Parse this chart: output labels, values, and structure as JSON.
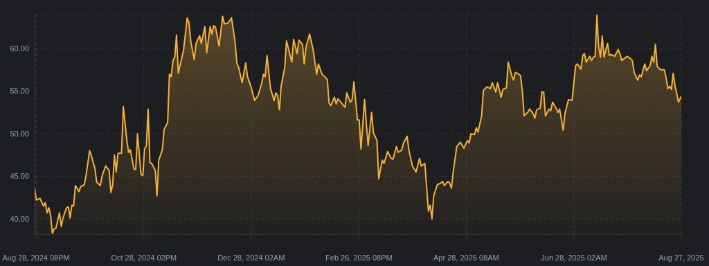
{
  "chart_data": {
    "type": "area",
    "x": [
      "2024-08-28",
      "2024-08-29",
      "2024-08-31",
      "2024-09-02",
      "2024-09-03",
      "2024-09-04",
      "2024-09-05",
      "2024-09-06",
      "2024-09-07",
      "2024-09-08",
      "2024-09-09",
      "2024-09-11",
      "2024-09-12",
      "2024-09-13",
      "2024-09-15",
      "2024-09-16",
      "2024-09-17",
      "2024-09-18",
      "2024-09-19",
      "2024-09-20",
      "2024-09-22",
      "2024-09-23",
      "2024-09-25",
      "2024-09-26",
      "2024-09-28",
      "2024-09-29",
      "2024-10-01",
      "2024-10-02",
      "2024-10-04",
      "2024-10-05",
      "2024-10-07",
      "2024-10-09",
      "2024-10-10",
      "2024-10-11",
      "2024-10-12",
      "2024-10-13",
      "2024-10-14",
      "2024-10-16",
      "2024-10-17",
      "2024-10-19",
      "2024-10-20",
      "2024-10-21",
      "2024-10-23",
      "2024-10-24",
      "2024-10-25",
      "2024-10-27",
      "2024-10-28",
      "2024-10-29",
      "2024-10-30",
      "2024-10-31",
      "2024-11-01",
      "2024-11-02",
      "2024-11-04",
      "2024-11-05",
      "2024-11-06",
      "2024-11-08",
      "2024-11-09",
      "2024-11-11",
      "2024-11-12",
      "2024-11-13",
      "2024-11-14",
      "2024-11-15",
      "2024-11-16",
      "2024-11-17",
      "2024-11-18",
      "2024-11-20",
      "2024-11-22",
      "2024-11-23",
      "2024-11-24",
      "2024-11-26",
      "2024-11-27",
      "2024-11-29",
      "2024-11-30",
      "2024-12-02",
      "2024-12-03",
      "2024-12-05",
      "2024-12-06",
      "2024-12-07",
      "2024-12-08",
      "2024-12-10",
      "2024-12-12",
      "2024-12-13",
      "2024-12-15",
      "2024-12-17",
      "2024-12-19",
      "2024-12-20",
      "2024-12-21",
      "2024-12-23",
      "2024-12-25",
      "2024-12-26",
      "2024-12-28",
      "2024-12-30",
      "2025-01-01",
      "2025-01-03",
      "2025-01-04",
      "2025-01-05",
      "2025-01-06",
      "2025-01-08",
      "2025-01-10",
      "2025-01-11",
      "2025-01-12",
      "2025-01-13",
      "2025-01-14",
      "2025-01-16",
      "2025-01-17",
      "2025-01-18",
      "2025-01-20",
      "2025-01-21",
      "2025-01-23",
      "2025-01-24",
      "2025-01-26",
      "2025-01-27",
      "2025-01-28",
      "2025-01-30",
      "2025-02-01",
      "2025-02-03",
      "2025-02-04",
      "2025-02-06",
      "2025-02-09",
      "2025-02-10",
      "2025-02-11",
      "2025-02-13",
      "2025-02-14",
      "2025-02-15",
      "2025-02-19",
      "2025-02-20",
      "2025-02-22",
      "2025-02-23",
      "2025-02-24",
      "2025-02-26",
      "2025-02-27",
      "2025-02-28",
      "2025-03-02",
      "2025-03-04",
      "2025-03-06",
      "2025-03-07",
      "2025-03-09",
      "2025-03-10",
      "2025-03-12",
      "2025-03-13",
      "2025-03-15",
      "2025-03-17",
      "2025-03-18",
      "2025-03-20",
      "2025-03-21",
      "2025-03-23",
      "2025-03-24",
      "2025-03-26",
      "2025-03-27",
      "2025-03-29",
      "2025-03-31",
      "2025-04-02",
      "2025-04-03",
      "2025-04-05",
      "2025-04-07",
      "2025-04-08",
      "2025-04-09",
      "2025-04-10",
      "2025-04-12",
      "2025-04-14",
      "2025-04-15",
      "2025-04-16",
      "2025-04-18",
      "2025-04-19",
      "2025-04-20",
      "2025-04-21",
      "2025-04-23",
      "2025-04-25",
      "2025-04-27",
      "2025-04-29",
      "2025-04-30",
      "2025-05-01",
      "2025-05-03",
      "2025-05-04",
      "2025-05-05",
      "2025-05-07",
      "2025-05-08",
      "2025-05-10",
      "2025-05-12",
      "2025-05-13",
      "2025-05-15",
      "2025-05-16",
      "2025-05-18",
      "2025-05-19",
      "2025-05-21",
      "2025-05-22",
      "2025-05-24",
      "2025-05-25",
      "2025-05-26",
      "2025-05-28",
      "2025-05-29",
      "2025-05-30",
      "2025-05-31",
      "2025-06-02",
      "2025-06-03",
      "2025-06-05",
      "2025-06-06",
      "2025-06-07",
      "2025-06-09",
      "2025-06-10",
      "2025-06-11",
      "2025-06-12",
      "2025-06-14",
      "2025-06-15",
      "2025-06-16",
      "2025-06-18",
      "2025-06-19",
      "2025-06-20",
      "2025-06-22",
      "2025-06-23",
      "2025-06-25",
      "2025-06-27",
      "2025-06-29",
      "2025-06-30",
      "2025-07-02",
      "2025-07-03",
      "2025-07-04",
      "2025-07-05",
      "2025-07-07",
      "2025-07-08",
      "2025-07-09",
      "2025-07-10",
      "2025-07-11",
      "2025-07-12",
      "2025-07-13",
      "2025-07-14",
      "2025-07-15",
      "2025-07-16",
      "2025-07-17",
      "2025-07-18",
      "2025-07-19",
      "2025-07-21",
      "2025-07-23",
      "2025-07-24",
      "2025-07-25",
      "2025-07-28",
      "2025-07-30",
      "2025-07-31",
      "2025-08-01",
      "2025-08-03",
      "2025-08-04",
      "2025-08-05",
      "2025-08-07",
      "2025-08-08",
      "2025-08-10",
      "2025-08-11",
      "2025-08-12",
      "2025-08-13",
      "2025-08-14",
      "2025-08-16",
      "2025-08-18",
      "2025-08-19",
      "2025-08-20",
      "2025-08-21",
      "2025-08-22",
      "2025-08-23",
      "2025-08-24",
      "2025-08-26",
      "2025-08-27T14:00"
    ],
    "values": [
      43.6,
      42.2,
      42.4,
      41.5,
      41.9,
      40.7,
      41.3,
      40.4,
      38.3,
      38.8,
      38.9,
      40.7,
      39.1,
      40.1,
      41.3,
      41.4,
      40.1,
      41.6,
      41.5,
      43.9,
      43.2,
      43.8,
      44.0,
      45.1,
      48.0,
      47.4,
      45.9,
      44.3,
      43.9,
      45.0,
      46.2,
      45.7,
      43.1,
      44.0,
      47.5,
      45.5,
      47.7,
      47.7,
      53.2,
      49.2,
      47.8,
      48.1,
      45.8,
      45.8,
      50.0,
      45.2,
      45.1,
      48.2,
      48.6,
      52.9,
      46.6,
      46.5,
      45.7,
      42.7,
      46.9,
      48.1,
      50.5,
      51.3,
      57.0,
      56.7,
      58.6,
      59.0,
      61.6,
      57.1,
      58.0,
      59.9,
      63.6,
      63.1,
      60.9,
      58.7,
      60.6,
      61.5,
      60.6,
      62.6,
      59.5,
      62.6,
      61.7,
      62.7,
      62.5,
      60.3,
      63.8,
      62.9,
      63.0,
      63.6,
      60.8,
      58.3,
      57.8,
      56.0,
      58.3,
      56.7,
      55.5,
      53.9,
      54.5,
      55.9,
      57.0,
      56.7,
      59.2,
      55.3,
      53.9,
      54.8,
      54.5,
      52.8,
      55.6,
      57.8,
      60.9,
      60.1,
      58.4,
      61.1,
      59.4,
      61.0,
      60.5,
      58.2,
      60.2,
      61.7,
      59.9,
      57.0,
      58.2,
      57.0,
      56.4,
      53.6,
      53.3,
      54.3,
      53.5,
      54.1,
      53.1,
      54.8,
      53.7,
      54.0,
      56.1,
      51.6,
      51.6,
      48.2,
      54.0,
      48.6,
      52.5,
      50.1,
      49.2,
      44.7,
      46.9,
      46.5,
      47.9,
      47.1,
      47.0,
      48.5,
      47.8,
      48.1,
      48.9,
      49.7,
      48.1,
      46.2,
      45.5,
      47.1,
      46.2,
      46.5,
      40.9,
      41.6,
      40.0,
      42.7,
      44.0,
      44.2,
      44.4,
      43.9,
      44.4,
      44.2,
      43.6,
      45.5,
      48.5,
      49.0,
      48.3,
      49.2,
      48.9,
      50.0,
      49.9,
      50.7,
      50.2,
      52.1,
      55.1,
      55.5,
      55.3,
      56.0,
      54.9,
      56.0,
      54.3,
      55.2,
      55.4,
      58.4,
      56.8,
      56.3,
      57.2,
      57.0,
      56.8,
      54.9,
      52.1,
      52.5,
      52.9,
      52.4,
      51.8,
      52.8,
      53.0,
      54.9,
      54.9,
      52.1,
      52.9,
      52.7,
      53.7,
      53.0,
      52.5,
      52.9,
      50.4,
      52.4,
      54.0,
      53.9,
      58.0,
      58.2,
      57.6,
      59.2,
      59.4,
      58.4,
      59.1,
      58.6,
      59.0,
      59.1,
      63.9,
      60.2,
      59.0,
      61.5,
      59.0,
      59.8,
      60.6,
      59.2,
      59.3,
      59.1,
      59.9,
      59.4,
      58.6,
      59.1,
      58.8,
      58.6,
      57.2,
      56.3,
      56.9,
      56.7,
      58.2,
      57.4,
      58.0,
      59.1,
      58.4,
      60.5,
      57.9,
      57.5,
      57.5,
      56.6,
      55.3,
      55.6,
      55.2,
      57.1,
      55.7,
      53.7,
      54.4
    ],
    "color": "#f5b13c",
    "xlim": [
      "2024-08-28",
      "2025-08-27T14:00"
    ],
    "xticks": [
      {
        "value": "2024-08-28T20:00",
        "label": "Aug 28, 2024 08PM"
      },
      {
        "value": "2024-10-28T14:00",
        "label": "Oct 28, 2024 02PM"
      },
      {
        "value": "2024-12-28T02:00",
        "label": "Dec 28, 2024 02AM"
      },
      {
        "value": "2025-02-26T20:00",
        "label": "Feb 26, 2025 08PM"
      },
      {
        "value": "2025-04-28T08:00",
        "label": "Apr 28, 2025 08AM"
      },
      {
        "value": "2025-06-28T02:00",
        "label": "Jun 28, 2025 02AM"
      },
      {
        "value": "2025-08-27T14:00",
        "label": "Aug 27, 2025"
      }
    ],
    "ylim": [
      38.2,
      64
    ],
    "yticks": [
      {
        "value": 40,
        "label": "40.00"
      },
      {
        "value": 45,
        "label": "45.00"
      },
      {
        "value": 50,
        "label": "50.00"
      },
      {
        "value": 55,
        "label": "55.00"
      },
      {
        "value": 60,
        "label": "60.00"
      }
    ],
    "grid": true
  }
}
